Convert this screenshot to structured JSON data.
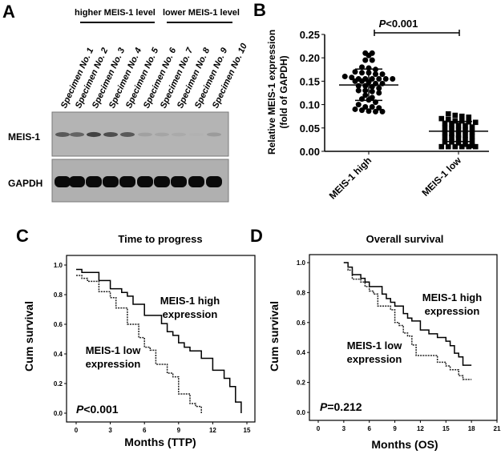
{
  "chart_data": [
    {
      "panel": "A",
      "type": "western-blot",
      "group_labels": [
        "higher MEIS-1 level",
        "lower MEIS-1 level"
      ],
      "lanes": [
        "Specimen No. 1",
        "Specimen No. 2",
        "Specimen No. 3",
        "Specimen No. 4",
        "Specimen No. 5",
        "Specimen No. 6",
        "Specimen No. 7",
        "Specimen No. 8",
        "Specimen No. 9",
        "Specimen No. 10"
      ],
      "rows": [
        {
          "label": "MEIS-1",
          "intensity": [
            0.8,
            0.75,
            0.9,
            0.85,
            0.8,
            0.35,
            0.3,
            0.25,
            0.05,
            0.4
          ]
        },
        {
          "label": "GAPDH",
          "intensity": [
            1,
            1,
            1,
            1,
            1,
            1,
            1,
            1,
            1,
            1
          ]
        }
      ]
    },
    {
      "panel": "B",
      "type": "scatter",
      "ylabel": "Relative MEIS-1 expression (fold of GAPDH)",
      "ylabel_lines": [
        "Relative MEIS-1 expression",
        "(fold of GAPDH)"
      ],
      "categories": [
        "MEIS-1 high",
        "MEIS-1 low"
      ],
      "ylim": [
        0,
        0.25
      ],
      "yticks": [
        "0.00",
        "0.05",
        "0.10",
        "0.15",
        "0.20",
        "0.25"
      ],
      "annotation": {
        "p_label": "P",
        "p_value": "<0.001"
      },
      "series": [
        {
          "marker": "circle",
          "mean": 0.142,
          "sd_upper": 0.176,
          "sd_lower": 0.109,
          "values": [
            0.21,
            0.21,
            0.205,
            0.195,
            0.195,
            0.18,
            0.178,
            0.175,
            0.17,
            0.168,
            0.168,
            0.165,
            0.165,
            0.16,
            0.158,
            0.155,
            0.155,
            0.155,
            0.155,
            0.155,
            0.155,
            0.15,
            0.15,
            0.148,
            0.145,
            0.145,
            0.14,
            0.14,
            0.138,
            0.135,
            0.13,
            0.13,
            0.128,
            0.125,
            0.12,
            0.115,
            0.112,
            0.11,
            0.105,
            0.1,
            0.095,
            0.095,
            0.093,
            0.09,
            0.088,
            0.086,
            0.085,
            0.085
          ]
        },
        {
          "marker": "square",
          "mean": 0.043,
          "sd_upper": 0.064,
          "sd_lower": 0.021,
          "values": [
            0.08,
            0.077,
            0.075,
            0.073,
            0.07,
            0.068,
            0.065,
            0.065,
            0.063,
            0.062,
            0.06,
            0.058,
            0.055,
            0.055,
            0.052,
            0.05,
            0.048,
            0.045,
            0.045,
            0.042,
            0.04,
            0.038,
            0.035,
            0.035,
            0.032,
            0.03,
            0.03,
            0.028,
            0.025,
            0.022,
            0.02,
            0.02,
            0.018,
            0.015,
            0.012,
            0.01,
            0.01,
            0.01,
            0.01,
            0.01,
            0.01
          ]
        }
      ]
    },
    {
      "panel": "C",
      "type": "line",
      "title": "Time to progress",
      "xlabel": "Months (TTP)",
      "ylabel": "Cum survival",
      "xlim": [
        0,
        15
      ],
      "ylim": [
        0,
        1
      ],
      "xticks": [
        "0",
        "3",
        "6",
        "9",
        "12",
        "15"
      ],
      "yticks": [
        "0.0",
        "0.2",
        "0.4",
        "0.6",
        "0.8",
        "1.0"
      ],
      "annotation": {
        "p_label": "P",
        "p_value": "<0.001"
      },
      "series": [
        {
          "name": "MEIS-1 high expression",
          "name_lines": [
            "MEIS-1 high",
            "expression"
          ],
          "style": "solid",
          "steps": [
            [
              0,
              0.97
            ],
            [
              0.5,
              0.95
            ],
            [
              2,
              0.895
            ],
            [
              3,
              0.84
            ],
            [
              4,
              0.815
            ],
            [
              4.5,
              0.79
            ],
            [
              5,
              0.735
            ],
            [
              6,
              0.66
            ],
            [
              7.5,
              0.605
            ],
            [
              8,
              0.55
            ],
            [
              8.5,
              0.525
            ],
            [
              9,
              0.475
            ],
            [
              9.5,
              0.445
            ],
            [
              10,
              0.42
            ],
            [
              11,
              0.37
            ],
            [
              12,
              0.29
            ],
            [
              13,
              0.235
            ],
            [
              13.5,
              0.18
            ],
            [
              14,
              0.075
            ],
            [
              14.5,
              0
            ]
          ],
          "end": 14.5
        },
        {
          "name": "MEIS-1 low expression",
          "name_lines": [
            "MEIS-1 low",
            "expression"
          ],
          "style": "dotted",
          "steps": [
            [
              0,
              0.93
            ],
            [
              0.5,
              0.91
            ],
            [
              1,
              0.89
            ],
            [
              2,
              0.82
            ],
            [
              3,
              0.78
            ],
            [
              3.5,
              0.71
            ],
            [
              4.5,
              0.6
            ],
            [
              5.5,
              0.51
            ],
            [
              6,
              0.445
            ],
            [
              6.5,
              0.425
            ],
            [
              7,
              0.33
            ],
            [
              8,
              0.27
            ],
            [
              8.5,
              0.245
            ],
            [
              9,
              0.13
            ],
            [
              10,
              0.065
            ],
            [
              10.5,
              0.045
            ],
            [
              11,
              0
            ]
          ],
          "end": 11
        }
      ]
    },
    {
      "panel": "D",
      "type": "line",
      "title": "Overall survival",
      "xlabel": "Months (OS)",
      "ylabel": "Cum survival",
      "xlim": [
        0,
        21
      ],
      "ylim": [
        0,
        1
      ],
      "xticks": [
        "0",
        "3",
        "6",
        "9",
        "12",
        "15",
        "18",
        "21"
      ],
      "yticks": [
        "0.0",
        "0.2",
        "0.4",
        "0.6",
        "0.8",
        "1.0"
      ],
      "annotation": {
        "p_label": "P",
        "p_value": "=0.212"
      },
      "series": [
        {
          "name": "MEIS-1 high expression",
          "name_lines": [
            "MEIS-1 high",
            "expression"
          ],
          "style": "solid",
          "steps": [
            [
              3,
              1
            ],
            [
              3.5,
              0.97
            ],
            [
              4,
              0.92
            ],
            [
              5,
              0.895
            ],
            [
              5.5,
              0.87
            ],
            [
              6,
              0.84
            ],
            [
              7.5,
              0.79
            ],
            [
              8,
              0.76
            ],
            [
              8.5,
              0.735
            ],
            [
              9,
              0.71
            ],
            [
              10,
              0.66
            ],
            [
              10.5,
              0.63
            ],
            [
              11,
              0.61
            ],
            [
              12,
              0.55
            ],
            [
              13,
              0.525
            ],
            [
              14,
              0.5
            ],
            [
              15,
              0.475
            ],
            [
              15.5,
              0.445
            ],
            [
              16,
              0.395
            ],
            [
              16.5,
              0.37
            ],
            [
              17,
              0.315
            ]
          ],
          "end": 18
        },
        {
          "name": "MEIS-1 low expression",
          "name_lines": [
            "MEIS-1 low",
            "expression"
          ],
          "style": "dotted",
          "steps": [
            [
              3,
              1
            ],
            [
              3.5,
              0.95
            ],
            [
              4,
              0.89
            ],
            [
              5,
              0.87
            ],
            [
              5.5,
              0.84
            ],
            [
              6,
              0.81
            ],
            [
              6.5,
              0.79
            ],
            [
              7,
              0.71
            ],
            [
              8.5,
              0.685
            ],
            [
              9,
              0.6
            ],
            [
              9.5,
              0.58
            ],
            [
              10,
              0.53
            ],
            [
              10.5,
              0.51
            ],
            [
              11,
              0.45
            ],
            [
              11.5,
              0.38
            ],
            [
              14,
              0.335
            ],
            [
              15,
              0.31
            ],
            [
              15.5,
              0.285
            ],
            [
              16.5,
              0.245
            ],
            [
              17,
              0.22
            ]
          ],
          "end": 18
        }
      ]
    }
  ]
}
